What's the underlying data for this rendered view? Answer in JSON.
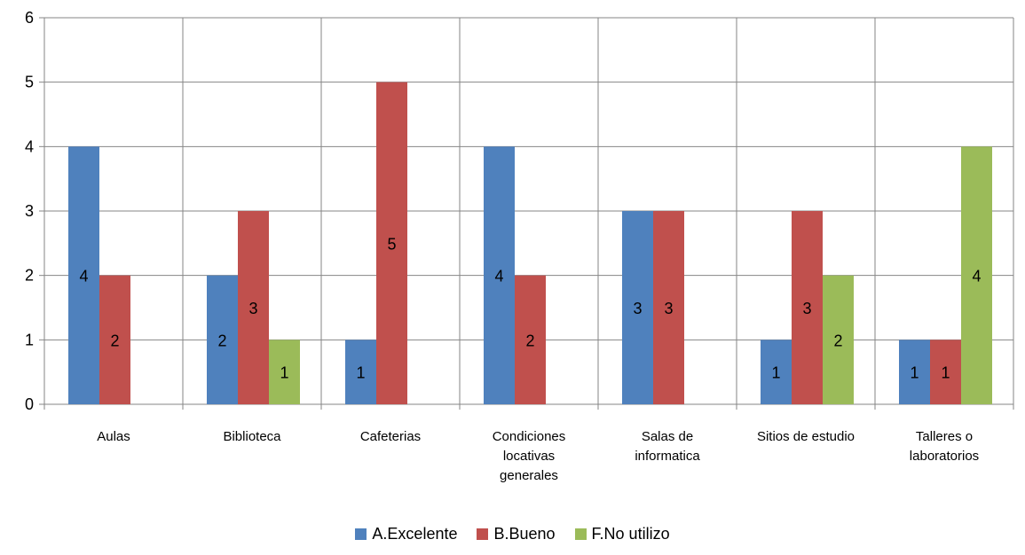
{
  "chart_data": {
    "type": "bar",
    "categories": [
      [
        "Aulas"
      ],
      [
        "Biblioteca"
      ],
      [
        "Cafeterias"
      ],
      [
        "Condiciones",
        "locativas",
        "generales"
      ],
      [
        "Salas de",
        "informatica"
      ],
      [
        "Sitios de estudio"
      ],
      [
        "Talleres o",
        "laboratorios"
      ]
    ],
    "series": [
      {
        "name": "A.Excelente",
        "color": "#4F81BD",
        "values": [
          4,
          2,
          1,
          4,
          3,
          1,
          1
        ]
      },
      {
        "name": "B.Bueno",
        "color": "#C0504D",
        "values": [
          2,
          3,
          5,
          2,
          3,
          3,
          1
        ]
      },
      {
        "name": "F.No utilizo",
        "color": "#9BBB59",
        "values": [
          null,
          1,
          null,
          null,
          null,
          2,
          4
        ]
      }
    ],
    "yticks": [
      "0",
      "1",
      "2",
      "3",
      "4",
      "5",
      "6"
    ],
    "ylim": [
      0,
      6
    ],
    "grid": true,
    "legend_position": "bottom"
  }
}
